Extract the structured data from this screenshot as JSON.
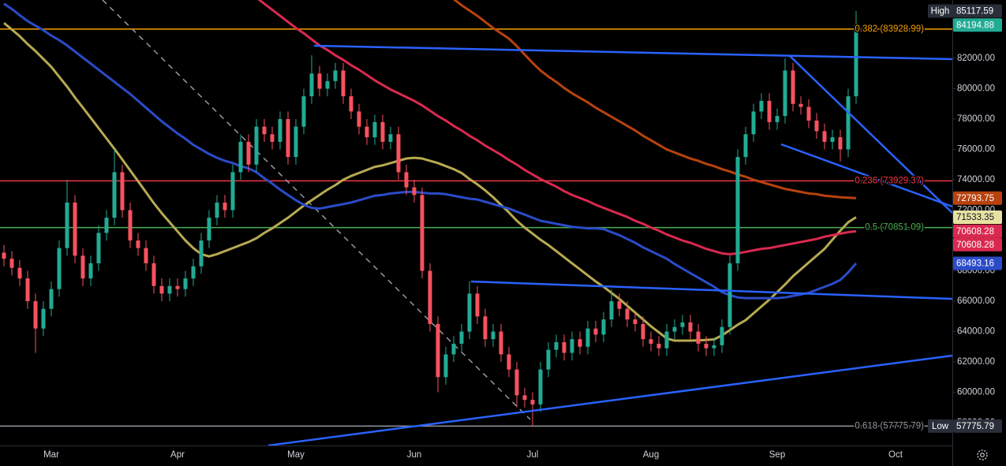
{
  "chart_data": {
    "type": "candlestick",
    "categories": [
      null,
      null,
      null,
      null,
      null,
      null,
      "Mar",
      null,
      null,
      null,
      null,
      null,
      null,
      null,
      null,
      null,
      null,
      null,
      null,
      null,
      null,
      null,
      "Apr",
      null,
      null,
      null,
      null,
      null,
      null,
      null,
      null,
      null,
      null,
      null,
      null,
      null,
      null,
      "May",
      null,
      null,
      null,
      null,
      null,
      null,
      null,
      null,
      null,
      null,
      null,
      null,
      null,
      null,
      "Jun",
      null,
      null,
      null,
      null,
      null,
      null,
      null,
      null,
      null,
      null,
      null,
      null,
      null,
      null,
      "Jul",
      null,
      null,
      null,
      null,
      null,
      null,
      null,
      null,
      null,
      null,
      null,
      null,
      null,
      null,
      "Aug",
      null,
      null,
      null,
      null,
      null,
      null,
      null,
      null,
      null,
      null,
      null,
      null,
      null,
      null,
      null,
      "Sep",
      null,
      null,
      null,
      null,
      null,
      null,
      null,
      null,
      null,
      null,
      null,
      null,
      null,
      null,
      "Oct"
    ],
    "open": [
      69200,
      68800,
      68200,
      67500,
      66000,
      64200,
      65500,
      66800,
      69500,
      72500,
      69000,
      67500,
      68500,
      70500,
      71500,
      74500,
      72000,
      70000,
      69500,
      68500,
      67000,
      66500,
      67000,
      66800,
      67500,
      68300,
      70000,
      71500,
      72500,
      72000,
      74500,
      76500,
      75000,
      77500,
      77000,
      76500,
      78000,
      75500,
      77500,
      79500,
      81000,
      80000,
      80500,
      81200,
      79500,
      78500,
      77500,
      76800,
      77800,
      76500,
      77000,
      74500,
      73500,
      73000,
      68000,
      64500,
      61000,
      62500,
      63200,
      64000,
      66500,
      65000,
      63500,
      64000,
      62500,
      61500,
      59800,
      59500,
      59200,
      61500,
      62800,
      63300,
      62600,
      63500,
      63000,
      64200,
      63800,
      64800,
      66000,
      65500,
      64800,
      64500,
      63500,
      63200,
      62900,
      64000,
      64300,
      64600,
      64000,
      63200,
      62900,
      63100,
      64300,
      68500,
      75500,
      77000,
      78500,
      79200,
      77800,
      78200,
      81200,
      79000,
      78800,
      77900,
      77200,
      76500,
      76800,
      76000,
      79500,
      null,
      null,
      null,
      null,
      null
    ],
    "high": [
      69700,
      69300,
      68700,
      68000,
      66500,
      66000,
      67300,
      70000,
      74000,
      73000,
      69500,
      69000,
      71000,
      72000,
      76000,
      75000,
      72500,
      70500,
      70000,
      69000,
      67500,
      67500,
      67500,
      68000,
      68800,
      70500,
      72000,
      73000,
      73000,
      75000,
      77000,
      77000,
      78000,
      78000,
      77500,
      78500,
      78500,
      78000,
      80000,
      82200,
      81500,
      81000,
      81700,
      81700,
      80000,
      79000,
      78000,
      78300,
      78300,
      77500,
      77500,
      75000,
      74000,
      73500,
      68500,
      65000,
      63000,
      63700,
      64500,
      67300,
      67000,
      65500,
      64500,
      64500,
      63000,
      62000,
      60300,
      60000,
      62000,
      63300,
      63800,
      63800,
      64000,
      64000,
      64700,
      64700,
      65300,
      66800,
      66500,
      66000,
      65300,
      65000,
      64000,
      63700,
      64500,
      64800,
      65100,
      65100,
      64500,
      63700,
      63600,
      64800,
      69000,
      76000,
      77500,
      79000,
      79700,
      79700,
      78700,
      82000,
      81700,
      79500,
      79300,
      78400,
      77700,
      77300,
      77300,
      80000,
      85117.59,
      null,
      null,
      null,
      null,
      null
    ],
    "low": [
      68300,
      67700,
      67000,
      65500,
      62600,
      63700,
      65000,
      66300,
      69000,
      68500,
      67000,
      67000,
      68000,
      70000,
      71000,
      71500,
      69500,
      69000,
      68000,
      66500,
      66000,
      66000,
      66300,
      66300,
      67000,
      67800,
      69500,
      71000,
      71500,
      71500,
      74000,
      74500,
      74500,
      76500,
      76000,
      76000,
      75000,
      75000,
      77000,
      79000,
      79500,
      79500,
      80000,
      79000,
      78000,
      77000,
      76300,
      76300,
      76000,
      76000,
      74000,
      73000,
      72500,
      67500,
      64000,
      60000,
      60500,
      62000,
      62700,
      63500,
      64500,
      63000,
      63000,
      62000,
      61000,
      59000,
      59000,
      57775.79,
      58700,
      61000,
      62300,
      62100,
      62100,
      62500,
      62500,
      63300,
      63300,
      64300,
      65000,
      64300,
      64000,
      63000,
      62700,
      62400,
      62400,
      63500,
      63800,
      63500,
      62700,
      62400,
      62400,
      62600,
      63800,
      68000,
      75000,
      76500,
      78000,
      77300,
      77300,
      77700,
      78500,
      78300,
      77400,
      76700,
      76000,
      76000,
      75200,
      75500,
      79000,
      null,
      null,
      null,
      null,
      null
    ],
    "close": [
      68800,
      68200,
      67500,
      66000,
      64200,
      65500,
      66800,
      69500,
      72500,
      69000,
      67500,
      68500,
      70500,
      71500,
      74500,
      72000,
      70000,
      69500,
      68500,
      67000,
      66500,
      67000,
      66800,
      67500,
      68300,
      70000,
      71500,
      72500,
      72000,
      74500,
      76500,
      75000,
      77500,
      77000,
      76500,
      78000,
      75500,
      77500,
      79500,
      81000,
      80000,
      80500,
      81200,
      79500,
      78500,
      77500,
      76800,
      77800,
      76500,
      77000,
      74500,
      73500,
      73000,
      68000,
      64500,
      61000,
      62500,
      63200,
      64000,
      66500,
      65000,
      63500,
      64000,
      62500,
      61500,
      59800,
      59500,
      59200,
      61500,
      62800,
      63300,
      62600,
      63500,
      63000,
      64200,
      63800,
      64800,
      66000,
      65500,
      64800,
      64500,
      63500,
      63200,
      62900,
      64000,
      64300,
      64600,
      64000,
      63200,
      62900,
      63100,
      64300,
      68500,
      75500,
      77000,
      78500,
      79200,
      77800,
      78200,
      81200,
      79000,
      78800,
      77900,
      77200,
      76500,
      76800,
      76000,
      79500,
      84194.88,
      null,
      null,
      null,
      null,
      null
    ],
    "up_color": "#22ab94",
    "down_color": "#f7525f",
    "moving_averages": [
      {
        "color": "#b7aa52",
        "values": [
          84330,
          83900,
          83460,
          82940,
          82480,
          81960,
          81440,
          80790,
          80140,
          79420,
          78760,
          78080,
          77400,
          76720,
          76040,
          75340,
          74620,
          73900,
          73180,
          72460,
          71800,
          71200,
          70600,
          70000,
          69500,
          69100,
          68950,
          69100,
          69300,
          69500,
          69700,
          69900,
          70150,
          70500,
          70800,
          71150,
          71500,
          71900,
          72300,
          72650,
          73000,
          73350,
          73650,
          74000,
          74250,
          74450,
          74650,
          74850,
          74950,
          75100,
          75250,
          75400,
          75450,
          75400,
          75250,
          75100,
          74900,
          74700,
          74450,
          74050,
          73700,
          73300,
          72850,
          72350,
          71850,
          71300,
          70850,
          70450,
          70050,
          69700,
          69300,
          68900,
          68500,
          68100,
          67700,
          67300,
          66950,
          66550,
          66150,
          65700,
          65250,
          64800,
          64350,
          63950,
          63550,
          63400,
          63400,
          63400,
          63420,
          63450,
          63480,
          63750,
          64100,
          64450,
          64750,
          65200,
          65650,
          66100,
          66600,
          67100,
          67650,
          68100,
          68550,
          69000,
          69450,
          70050,
          70650,
          71200,
          71533.35,
          null,
          null,
          null,
          null,
          null
        ]
      },
      {
        "color": "#2b4bc9",
        "values": [
          85600,
          85250,
          84850,
          84450,
          84150,
          83850,
          83500,
          83200,
          82850,
          82450,
          82050,
          81650,
          81250,
          80850,
          80450,
          80050,
          79650,
          79200,
          78750,
          78300,
          77850,
          77450,
          77050,
          76700,
          76300,
          76000,
          75700,
          75450,
          75250,
          75100,
          74900,
          74750,
          74500,
          74100,
          73750,
          73350,
          73000,
          72650,
          72350,
          72150,
          72100,
          72200,
          72300,
          72400,
          72500,
          72650,
          72800,
          72950,
          73000,
          73100,
          73150,
          73200,
          73200,
          73150,
          73100,
          73100,
          73050,
          72950,
          72850,
          72750,
          72700,
          72550,
          72400,
          72250,
          72100,
          71900,
          71700,
          71500,
          71300,
          71200,
          71100,
          71000,
          70900,
          70850,
          70800,
          70800,
          70750,
          70550,
          70350,
          70100,
          69850,
          69550,
          69300,
          69050,
          68800,
          68450,
          68150,
          67850,
          67550,
          67250,
          66950,
          66600,
          66400,
          66250,
          66200,
          66200,
          66200,
          66200,
          66200,
          66250,
          66350,
          66450,
          66550,
          66750,
          66950,
          67150,
          67400,
          67900,
          68493.16,
          null,
          null,
          null,
          null,
          null
        ]
      },
      {
        "color": "#d9294f",
        "values": [
          null,
          null,
          null,
          null,
          null,
          null,
          null,
          null,
          null,
          null,
          null,
          null,
          null,
          null,
          null,
          null,
          null,
          null,
          null,
          null,
          null,
          null,
          null,
          null,
          null,
          null,
          null,
          null,
          null,
          null,
          null,
          null,
          86000,
          85600,
          85200,
          84800,
          84400,
          84000,
          83650,
          83250,
          82850,
          82550,
          82200,
          81900,
          81550,
          81250,
          80900,
          80550,
          80250,
          79950,
          79700,
          79450,
          79200,
          78900,
          78550,
          78200,
          77900,
          77550,
          77250,
          76900,
          76600,
          76250,
          75950,
          75650,
          75300,
          75000,
          74650,
          74350,
          74050,
          73800,
          73550,
          73250,
          73000,
          72800,
          72600,
          72350,
          72150,
          71950,
          71750,
          71550,
          71300,
          71100,
          70850,
          70650,
          70400,
          70200,
          70000,
          69850,
          69650,
          69450,
          69300,
          69150,
          69100,
          69150,
          69250,
          69350,
          69450,
          69500,
          69600,
          69700,
          69800,
          69900,
          70000,
          70100,
          70250,
          70350,
          70450,
          70550,
          70608.28,
          null,
          null,
          null,
          null,
          null
        ]
      },
      {
        "color": "#b8420e",
        "values": [
          null,
          null,
          null,
          null,
          null,
          null,
          null,
          null,
          null,
          null,
          null,
          null,
          null,
          null,
          null,
          null,
          null,
          null,
          null,
          null,
          null,
          null,
          null,
          null,
          null,
          null,
          null,
          null,
          null,
          null,
          null,
          null,
          null,
          null,
          null,
          null,
          null,
          null,
          null,
          null,
          null,
          null,
          null,
          null,
          null,
          null,
          null,
          null,
          null,
          null,
          null,
          null,
          null,
          null,
          null,
          null,
          null,
          85900,
          85500,
          85150,
          84800,
          84400,
          84000,
          83650,
          83300,
          82800,
          82250,
          81700,
          81200,
          80800,
          80450,
          80050,
          79700,
          79400,
          79100,
          78750,
          78450,
          78150,
          77850,
          77550,
          77250,
          76900,
          76600,
          76300,
          76000,
          75800,
          75600,
          75400,
          75250,
          75050,
          74900,
          74700,
          74550,
          74350,
          74200,
          74000,
          73850,
          73700,
          73550,
          73400,
          73300,
          73200,
          73100,
          73050,
          72950,
          72900,
          72850,
          72820,
          72793.75,
          null,
          null,
          null,
          null,
          null
        ]
      }
    ],
    "levels": [
      {
        "label": "0.382 (83928.99)",
        "value": 83928.99,
        "color": "#f59f00"
      },
      {
        "label": "0.236 (73929.37)",
        "value": 73929.37,
        "color": "#f23645"
      },
      {
        "label": "0.5 (70851.09)",
        "value": 70851.09,
        "color": "#4caf50"
      },
      {
        "label": "0.618 (57775.79)",
        "value": 57775.79,
        "color": "#9598a1"
      }
    ],
    "ylim": [
      56494,
      85844
    ],
    "yticks": [
      {
        "value": 84000,
        "label": "84000.00"
      },
      {
        "value": 82000,
        "label": "82000.00"
      },
      {
        "value": 80000,
        "label": "80000.00"
      },
      {
        "value": 78000,
        "label": "78000.00"
      },
      {
        "value": 76000,
        "label": "76000.00"
      },
      {
        "value": 74000,
        "label": "74000.00"
      },
      {
        "value": 72000,
        "label": "72000.00"
      },
      {
        "value": 70000,
        "label": "70000.00"
      },
      {
        "value": 68000,
        "label": "68000.00"
      },
      {
        "value": 66000,
        "label": "66000.00"
      },
      {
        "value": 64000,
        "label": "64000.00"
      },
      {
        "value": 62000,
        "label": "62000.00"
      },
      {
        "value": 60000,
        "label": "60000.00"
      },
      {
        "value": 58000,
        "label": "58000.00"
      }
    ],
    "badges": [
      {
        "tag": "High",
        "value": 85117.59,
        "color": "#2a2e39",
        "text_color": "#ffffff"
      },
      {
        "value": 84194.88,
        "color": "#22ab94",
        "text_color": "#ffffff"
      },
      {
        "value": 72793.75,
        "color": "#b8420e",
        "text_color": "#ffffff"
      },
      {
        "value": 71533.35,
        "color": "#e8e2a2",
        "text_color": "#131722"
      },
      {
        "value": 70608.28,
        "color": "#d9294f",
        "text_color": "#ffffff"
      },
      {
        "value": 70608.28,
        "color": "#d9294f",
        "text_color": "#ffffff"
      },
      {
        "value": 68493.16,
        "color": "#2b4bc9",
        "text_color": "#ffffff"
      },
      {
        "tag": "Low",
        "value": 57775.79,
        "color": "#2a2e39",
        "text_color": "#ffffff"
      }
    ]
  }
}
